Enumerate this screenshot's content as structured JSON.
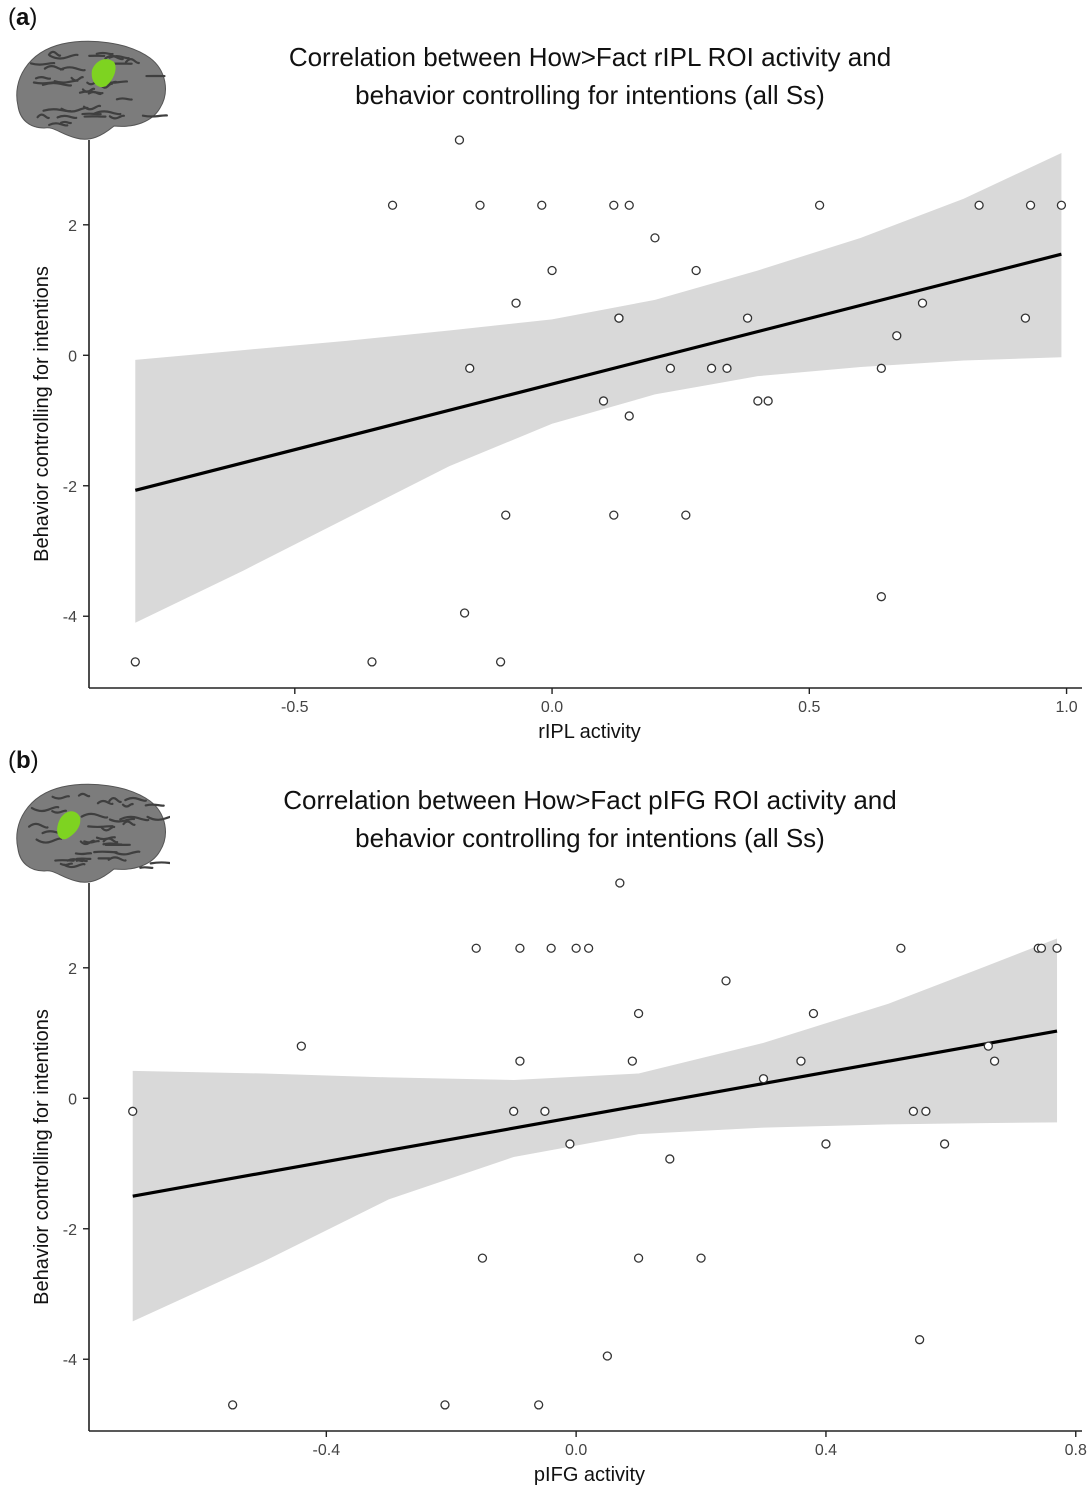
{
  "panels": [
    {
      "label": "a",
      "title_line1": "Correlation between How>Fact rIPL ROI activity and",
      "title_line2": "behavior controlling for intentions (all Ss)",
      "brain_highlight": "parietal"
    },
    {
      "label": "b",
      "title_line1": "Correlation between How>Fact pIFG ROI activity and",
      "title_line2": "behavior controlling for intentions (all Ss)",
      "brain_highlight": "frontal"
    }
  ],
  "colors": {
    "points_stroke": "#333333",
    "fit_line": "#000000",
    "confidence_band": "#d9d9d9",
    "brain_gyri": "#7c7c7c",
    "brain_sulci": "#3f3f3f",
    "roi_highlight": "#7ed321"
  },
  "chart_data": [
    {
      "type": "scatter",
      "title": "Correlation between How>Fact rIPL ROI activity and behavior controlling for intentions (all Ss)",
      "xlabel": "rIPL activity",
      "ylabel": "Behavior controlling for intentions",
      "xlim": [
        -0.9,
        1.03
      ],
      "ylim": [
        -5.1,
        3.3
      ],
      "xticks": [
        -0.5,
        0.0,
        0.5,
        1.0
      ],
      "xtick_labels": [
        "-0.5",
        "0.0",
        "0.5",
        "1.0"
      ],
      "yticks": [
        -4,
        -2,
        0,
        2
      ],
      "ytick_labels": [
        "-4",
        "-2",
        "0",
        "2"
      ],
      "grid": false,
      "points": [
        [
          -0.81,
          -4.7
        ],
        [
          -0.35,
          -4.7
        ],
        [
          -0.31,
          2.3
        ],
        [
          -0.18,
          3.3
        ],
        [
          -0.17,
          -3.95
        ],
        [
          -0.16,
          -0.2
        ],
        [
          -0.14,
          2.3
        ],
        [
          -0.1,
          -4.7
        ],
        [
          -0.09,
          -2.45
        ],
        [
          -0.07,
          0.8
        ],
        [
          -0.02,
          2.3
        ],
        [
          0.0,
          1.3
        ],
        [
          0.1,
          -0.7
        ],
        [
          0.12,
          2.3
        ],
        [
          0.12,
          -2.45
        ],
        [
          0.13,
          0.57
        ],
        [
          0.13,
          0.57
        ],
        [
          0.15,
          2.3
        ],
        [
          0.15,
          -0.93
        ],
        [
          0.2,
          1.8
        ],
        [
          0.23,
          -0.2
        ],
        [
          0.26,
          -2.45
        ],
        [
          0.28,
          1.3
        ],
        [
          0.31,
          -0.2
        ],
        [
          0.34,
          -0.2
        ],
        [
          0.38,
          0.57
        ],
        [
          0.4,
          -0.7
        ],
        [
          0.42,
          -0.7
        ],
        [
          0.52,
          2.3
        ],
        [
          0.64,
          -3.7
        ],
        [
          0.64,
          -0.2
        ],
        [
          0.67,
          0.3
        ],
        [
          0.72,
          0.8
        ],
        [
          0.83,
          2.3
        ],
        [
          0.92,
          0.57
        ],
        [
          0.93,
          2.3
        ],
        [
          0.99,
          2.3
        ]
      ],
      "fit": {
        "x": [
          -0.81,
          0.99
        ],
        "y": [
          -2.07,
          1.55
        ]
      },
      "band": {
        "x": [
          -0.81,
          -0.6,
          -0.4,
          -0.2,
          0.0,
          0.2,
          0.4,
          0.6,
          0.8,
          0.99
        ],
        "upper": [
          -0.07,
          0.08,
          0.22,
          0.38,
          0.55,
          0.85,
          1.3,
          1.8,
          2.4,
          3.1
        ],
        "lower": [
          -4.1,
          -3.3,
          -2.5,
          -1.7,
          -1.05,
          -0.6,
          -0.32,
          -0.18,
          -0.08,
          -0.03
        ]
      }
    },
    {
      "type": "scatter",
      "title": "Correlation between How>Fact pIFG ROI activity and behavior controlling for intentions (all Ss)",
      "xlabel": "pIFG activity",
      "ylabel": "Behavior controlling for intentions",
      "xlim": [
        -0.78,
        0.81
      ],
      "ylim": [
        -5.1,
        3.3
      ],
      "xticks": [
        -0.4,
        0.0,
        0.4,
        0.8
      ],
      "xtick_labels": [
        "-0.4",
        "0.0",
        "0.4",
        "0.8"
      ],
      "yticks": [
        -4,
        -2,
        0,
        2
      ],
      "ytick_labels": [
        "-4",
        "-2",
        "0",
        "2"
      ],
      "grid": false,
      "points": [
        [
          -0.71,
          -0.2
        ],
        [
          -0.55,
          -4.7
        ],
        [
          -0.44,
          0.8
        ],
        [
          -0.21,
          -4.7
        ],
        [
          -0.16,
          2.3
        ],
        [
          -0.15,
          -2.45
        ],
        [
          -0.1,
          -0.2
        ],
        [
          -0.09,
          0.57
        ],
        [
          -0.09,
          2.3
        ],
        [
          -0.06,
          -4.7
        ],
        [
          -0.05,
          -0.2
        ],
        [
          -0.04,
          2.3
        ],
        [
          -0.01,
          -0.7
        ],
        [
          0.0,
          2.3
        ],
        [
          0.02,
          2.3
        ],
        [
          0.05,
          -3.95
        ],
        [
          0.07,
          3.3
        ],
        [
          0.09,
          0.57
        ],
        [
          0.1,
          1.3
        ],
        [
          0.1,
          -2.45
        ],
        [
          0.15,
          -0.93
        ],
        [
          0.2,
          -2.45
        ],
        [
          0.24,
          1.8
        ],
        [
          0.3,
          0.3
        ],
        [
          0.36,
          0.57
        ],
        [
          0.38,
          1.3
        ],
        [
          0.4,
          -0.7
        ],
        [
          0.52,
          2.3
        ],
        [
          0.54,
          -0.2
        ],
        [
          0.55,
          -3.7
        ],
        [
          0.56,
          -0.2
        ],
        [
          0.59,
          -0.7
        ],
        [
          0.66,
          0.8
        ],
        [
          0.67,
          0.57
        ],
        [
          0.74,
          2.3
        ],
        [
          0.745,
          2.3
        ],
        [
          0.77,
          2.3
        ]
      ],
      "fit": {
        "x": [
          -0.71,
          0.77
        ],
        "y": [
          -1.5,
          1.03
        ]
      },
      "band": {
        "x": [
          -0.71,
          -0.5,
          -0.3,
          -0.1,
          0.1,
          0.3,
          0.5,
          0.65,
          0.77
        ],
        "upper": [
          0.42,
          0.38,
          0.32,
          0.28,
          0.38,
          0.85,
          1.45,
          2.0,
          2.45
        ],
        "lower": [
          -3.42,
          -2.5,
          -1.55,
          -0.9,
          -0.55,
          -0.45,
          -0.4,
          -0.38,
          -0.37
        ]
      }
    }
  ]
}
